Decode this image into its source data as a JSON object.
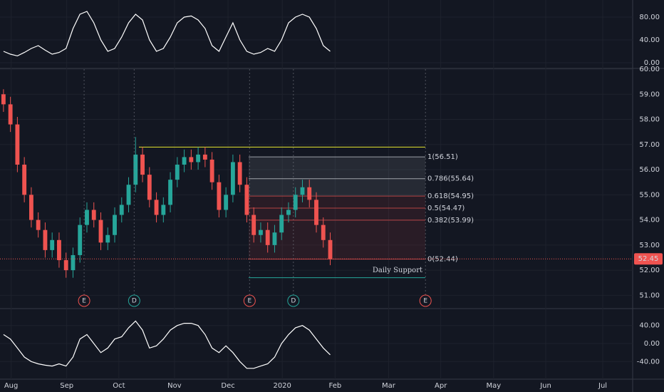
{
  "chart_data": [
    {
      "type": "candlestick",
      "open": [
        59.0,
        58.6,
        57.8,
        56.2,
        55.0,
        54.0,
        53.6,
        52.8,
        53.2,
        52.4,
        52.0,
        52.6,
        53.8,
        54.4,
        54.0,
        53.1,
        53.4,
        54.2,
        54.6,
        55.4,
        56.6,
        55.8,
        54.8,
        54.2,
        54.6,
        55.6,
        56.2,
        56.5,
        56.3,
        56.6,
        56.4,
        55.5,
        54.4,
        55.0,
        56.3,
        55.4,
        54.2,
        53.4,
        53.6,
        53.0,
        53.5,
        54.2,
        54.4,
        55.0,
        55.3,
        54.8,
        53.8,
        53.2
      ],
      "high": [
        59.2,
        58.9,
        58.1,
        56.5,
        55.3,
        54.3,
        53.9,
        53.5,
        53.5,
        52.7,
        52.9,
        54.1,
        54.7,
        54.7,
        54.3,
        53.7,
        54.5,
        54.9,
        55.7,
        57.3,
        56.9,
        56.1,
        55.1,
        54.9,
        55.9,
        56.5,
        56.8,
        56.8,
        56.9,
        56.9,
        56.7,
        55.8,
        55.3,
        56.6,
        56.6,
        55.7,
        54.5,
        53.9,
        53.9,
        53.8,
        54.5,
        54.7,
        55.3,
        55.6,
        55.6,
        55.1,
        54.1,
        53.5
      ],
      "low": [
        58.3,
        57.5,
        55.9,
        54.7,
        53.7,
        53.3,
        52.5,
        52.5,
        52.1,
        51.7,
        51.7,
        52.3,
        53.5,
        53.7,
        52.8,
        52.8,
        53.1,
        53.9,
        54.3,
        55.1,
        55.5,
        54.5,
        53.9,
        53.9,
        54.3,
        55.3,
        55.9,
        56.0,
        56.0,
        56.1,
        55.2,
        54.1,
        54.1,
        54.7,
        55.1,
        53.9,
        53.1,
        53.1,
        52.7,
        52.7,
        53.2,
        53.9,
        54.1,
        54.7,
        54.5,
        53.5,
        52.9,
        52.2
      ],
      "close": [
        58.6,
        57.8,
        56.2,
        55.0,
        54.0,
        53.6,
        52.8,
        53.2,
        52.4,
        52.0,
        52.6,
        53.8,
        54.4,
        54.0,
        53.1,
        53.4,
        54.2,
        54.6,
        55.4,
        56.6,
        55.8,
        54.8,
        54.2,
        54.6,
        55.6,
        56.2,
        56.5,
        56.3,
        56.6,
        56.4,
        55.5,
        54.4,
        55.0,
        56.3,
        55.4,
        54.2,
        53.4,
        53.6,
        53.0,
        53.5,
        54.2,
        54.4,
        55.0,
        55.3,
        54.8,
        53.8,
        53.2,
        52.45
      ],
      "up_color": "#26a69a",
      "down_color": "#ef5350",
      "xlim": [
        -0.5,
        90.5
      ],
      "xticks": [
        {
          "value": 1.1,
          "label": "Aug"
        },
        {
          "value": 9.1,
          "label": "Sep"
        },
        {
          "value": 16.6,
          "label": "Oct"
        },
        {
          "value": 24.6,
          "label": "Nov"
        },
        {
          "value": 32.3,
          "label": "Dec"
        },
        {
          "value": 40.1,
          "label": "2020"
        },
        {
          "value": 47.7,
          "label": "Feb"
        },
        {
          "value": 55.4,
          "label": "Mar"
        },
        {
          "value": 62.9,
          "label": "Apr"
        },
        {
          "value": 70.5,
          "label": "May"
        },
        {
          "value": 78,
          "label": "Jun"
        },
        {
          "value": 86.2,
          "label": "Jul"
        }
      ],
      "ylim": [
        50.5,
        60.0
      ],
      "yticks": [
        {
          "value": 51,
          "label": "51.00"
        },
        {
          "value": 52,
          "label": "52.00"
        },
        {
          "value": 53,
          "label": "53.00"
        },
        {
          "value": 54,
          "label": "54.00"
        },
        {
          "value": 55,
          "label": "55.00"
        },
        {
          "value": 56,
          "label": "56.00"
        },
        {
          "value": 57,
          "label": "57.00"
        },
        {
          "value": 58,
          "label": "58.00"
        },
        {
          "value": 59,
          "label": "59.00"
        },
        {
          "value": 60,
          "label": "60.00"
        }
      ],
      "fib_levels": [
        {
          "label": "1(56.51)",
          "value": 56.51,
          "color": "#d1d4dc"
        },
        {
          "label": "0.786(55.64)",
          "value": 55.64,
          "color": "#d1d4dc"
        },
        {
          "label": "0.618(54.95)",
          "value": 54.95,
          "color": "#ef5350"
        },
        {
          "label": "0.5(54.47)",
          "value": 54.47,
          "color": "#ef5350"
        },
        {
          "label": "0.382(53.99)",
          "value": 53.99,
          "color": "#ef5350"
        },
        {
          "label": "0(52.44)",
          "value": 52.44,
          "color": "#ef5350"
        }
      ],
      "resistance": 56.9,
      "support": {
        "label": "Daily Support",
        "value": 51.7
      },
      "last_price": 52.45,
      "events": [
        {
          "label": "E",
          "x": 11.6
        },
        {
          "label": "D",
          "x": 18.8
        },
        {
          "label": "E",
          "x": 35.4
        },
        {
          "label": "D",
          "x": 41.7
        },
        {
          "label": "E",
          "x": 60.7
        }
      ]
    },
    {
      "type": "line",
      "series": [
        {
          "color": "#ffffff",
          "values": [
            20,
            15,
            12,
            18,
            25,
            30,
            22,
            15,
            18,
            25,
            60,
            85,
            90,
            70,
            40,
            20,
            25,
            45,
            70,
            85,
            75,
            40,
            20,
            25,
            45,
            70,
            80,
            82,
            75,
            60,
            30,
            20,
            45,
            70,
            40,
            20,
            15,
            18,
            25,
            20,
            40,
            70,
            80,
            85,
            80,
            60,
            30,
            20
          ]
        }
      ],
      "ylim": [
        -8.75,
        110
      ],
      "yticks": [
        {
          "value": 0,
          "label": "0.00"
        },
        {
          "value": 40,
          "label": "40.00"
        },
        {
          "value": 80,
          "label": "80.00"
        }
      ]
    },
    {
      "type": "line",
      "series": [
        {
          "color": "#ffffff",
          "values": [
            20,
            10,
            -10,
            -30,
            -40,
            -45,
            -48,
            -50,
            -45,
            -50,
            -30,
            10,
            20,
            0,
            -20,
            -10,
            10,
            15,
            35,
            50,
            30,
            -10,
            -5,
            10,
            30,
            40,
            45,
            45,
            40,
            20,
            -10,
            -20,
            -5,
            -20,
            -40,
            -55,
            -55,
            -50,
            -45,
            -30,
            0,
            20,
            35,
            40,
            30,
            10,
            -10,
            -25
          ]
        }
      ],
      "ylim": [
        -77.5,
        74.4
      ],
      "yticks": [
        {
          "value": 40,
          "label": "40.00"
        },
        {
          "value": 0,
          "label": "0.00"
        },
        {
          "value": -40,
          "label": "-40.00"
        }
      ]
    }
  ]
}
